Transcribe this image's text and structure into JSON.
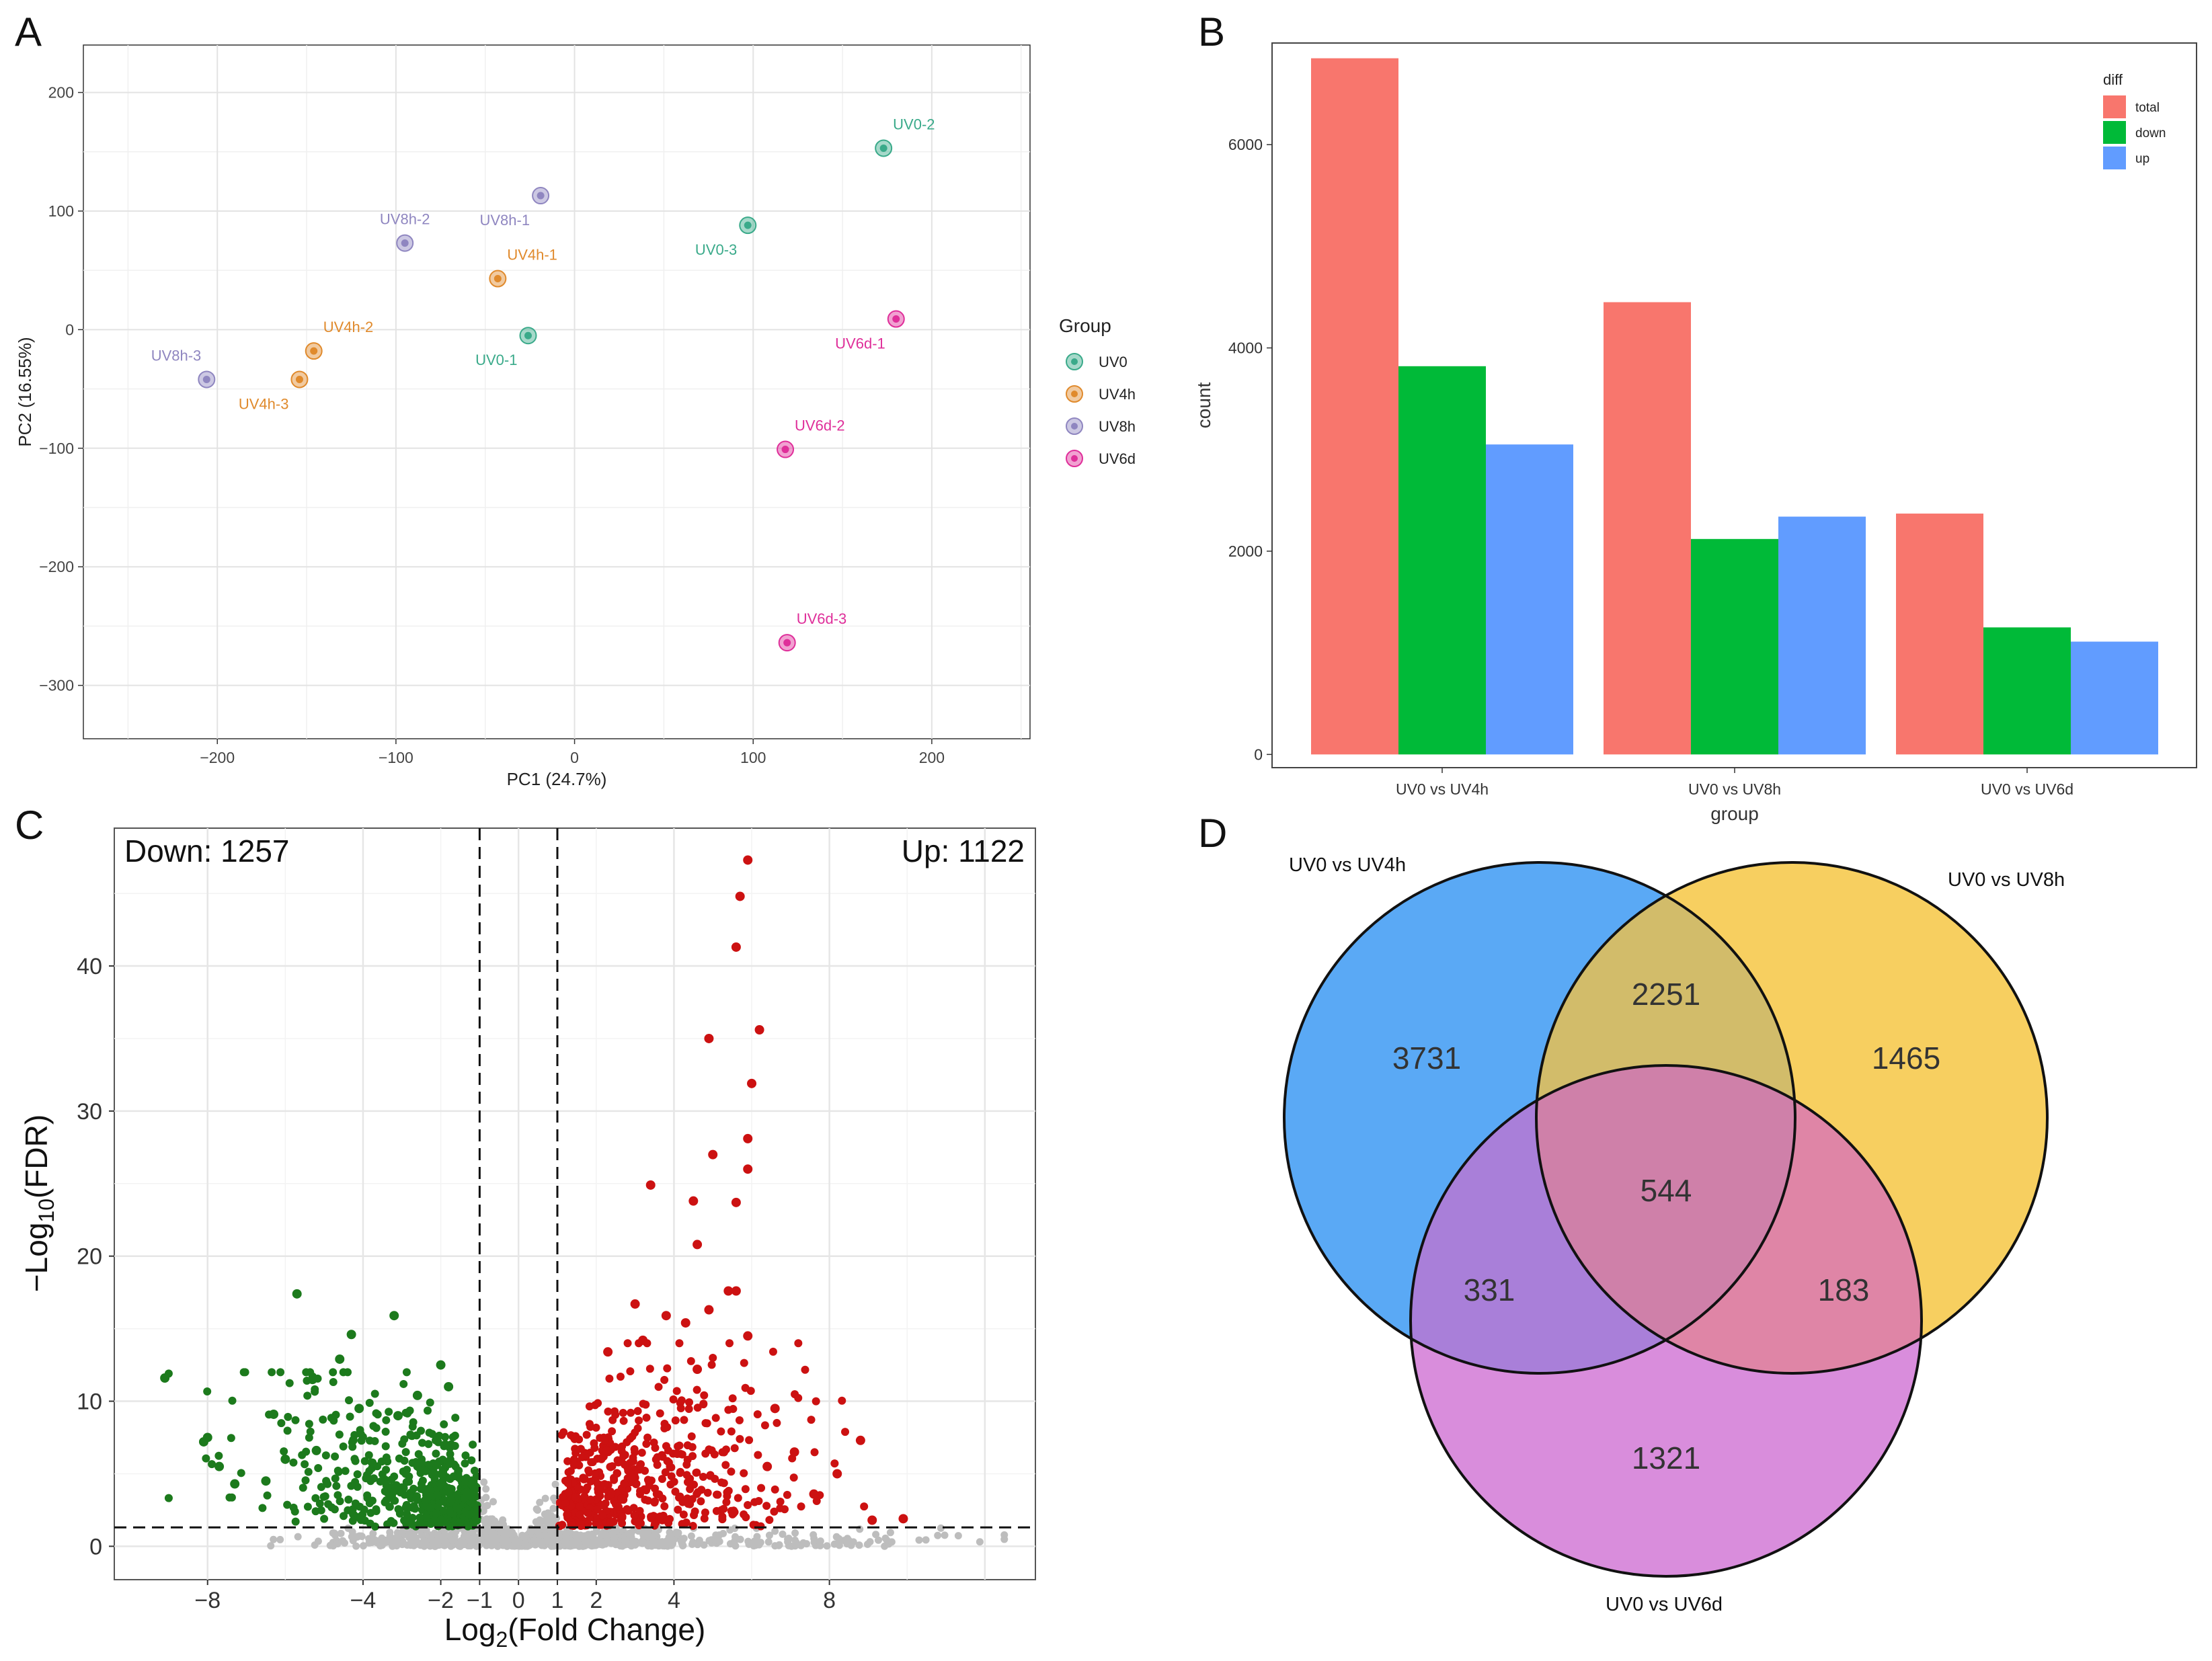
{
  "panel_labels": [
    "A",
    "B",
    "C",
    "D"
  ],
  "chart_data": [
    {
      "type": "scatter",
      "panel": "A",
      "title": "",
      "xlabel": "PC1 (24.7%)",
      "ylabel": "PC2 (16.55%)",
      "xlim": [
        -275,
        255
      ],
      "ylim": [
        -345,
        240
      ],
      "xticks": [
        -200,
        -100,
        0,
        100,
        200
      ],
      "yticks": [
        200,
        100,
        0,
        -100,
        -200,
        -300
      ],
      "tick_labels_x": [
        "−200",
        "−100",
        "0",
        "100",
        "200"
      ],
      "tick_labels_y": [
        "200",
        "100",
        "0",
        "−100",
        "−200",
        "−300"
      ],
      "grid": true,
      "legend": {
        "title": "Group",
        "placement": "right",
        "items": [
          {
            "label": "UV0",
            "color": "#3aaa8a"
          },
          {
            "label": "UV4h",
            "color": "#e08a2c"
          },
          {
            "label": "UV8h",
            "color": "#8f86c0"
          },
          {
            "label": "UV6d",
            "color": "#df2f9a"
          }
        ]
      },
      "points": [
        {
          "label": "UV0-1",
          "group": 0,
          "x": -26,
          "y": -5,
          "label_pos": "below-left"
        },
        {
          "label": "UV0-2",
          "group": 0,
          "x": 173,
          "y": 153,
          "label_pos": "above-right"
        },
        {
          "label": "UV0-3",
          "group": 0,
          "x": 97,
          "y": 88,
          "label_pos": "below-left"
        },
        {
          "label": "UV4h-1",
          "group": 1,
          "x": -43,
          "y": 43,
          "label_pos": "above-right"
        },
        {
          "label": "UV4h-2",
          "group": 1,
          "x": -146,
          "y": -18,
          "label_pos": "above-right"
        },
        {
          "label": "UV4h-3",
          "group": 1,
          "x": -154,
          "y": -42,
          "label_pos": "below-left"
        },
        {
          "label": "UV8h-1",
          "group": 2,
          "x": -19,
          "y": 113,
          "label_pos": "below-left"
        },
        {
          "label": "UV8h-2",
          "group": 2,
          "x": -95,
          "y": 73,
          "label_pos": "above"
        },
        {
          "label": "UV8h-3",
          "group": 2,
          "x": -206,
          "y": -42,
          "label_pos": "above-left"
        },
        {
          "label": "UV6d-1",
          "group": 3,
          "x": 180,
          "y": 9,
          "label_pos": "below-left"
        },
        {
          "label": "UV6d-2",
          "group": 3,
          "x": 118,
          "y": -101,
          "label_pos": "above-right"
        },
        {
          "label": "UV6d-3",
          "group": 3,
          "x": 119,
          "y": -264,
          "label_pos": "above-right"
        }
      ]
    },
    {
      "type": "bar",
      "panel": "B",
      "title": "",
      "xlabel": "group",
      "ylabel": "count",
      "ylim": [
        -130,
        7000
      ],
      "yticks": [
        0,
        2000,
        4000,
        6000
      ],
      "grid": false,
      "categories": [
        "UV0 vs UV4h",
        "UV0 vs UV8h",
        "UV0 vs UV6d"
      ],
      "legend": {
        "title": "diff",
        "placement": "top-right"
      },
      "series": [
        {
          "name": "total",
          "color": "#f8766d",
          "values": [
            6850,
            4450,
            2370
          ]
        },
        {
          "name": "down",
          "color": "#00ba38",
          "values": [
            3820,
            2120,
            1250
          ]
        },
        {
          "name": "up",
          "color": "#619cff",
          "values": [
            3050,
            2340,
            1110
          ]
        }
      ]
    },
    {
      "type": "scatter",
      "panel": "C",
      "title": "",
      "xlabel": "Log2(Fold Change)",
      "ylabel": "−Log10(FDR)",
      "xlim": [
        -10.4,
        13.3
      ],
      "ylim": [
        -2.3,
        49.5
      ],
      "xticks": [
        -8,
        -4,
        -2,
        -1,
        0,
        1,
        2,
        4,
        8
      ],
      "tick_labels_x": [
        "−8",
        "−4",
        "−2",
        "−1",
        "0",
        "1",
        "2",
        "4",
        "8"
      ],
      "yticks": [
        0,
        10,
        20,
        30,
        40
      ],
      "thresholds": {
        "log2fc": [
          -1,
          1
        ],
        "neg_log10_fdr": 1.3
      },
      "annotations": {
        "down": "Down: 1257",
        "up": "Up: 1122"
      },
      "counts": {
        "down": 1257,
        "up": 1122
      },
      "colors": {
        "down": "#1c7a1c",
        "up": "#cc1111",
        "ns": "#bdbdbd"
      },
      "highlighted_points": {
        "up": [
          [
            5.9,
            47.3
          ],
          [
            5.7,
            44.8
          ],
          [
            5.6,
            41.3
          ],
          [
            6.2,
            35.6
          ],
          [
            4.9,
            35.0
          ],
          [
            6.0,
            31.9
          ],
          [
            5.9,
            28.1
          ],
          [
            5.0,
            27.0
          ],
          [
            5.9,
            26.0
          ],
          [
            3.4,
            24.9
          ],
          [
            4.5,
            23.8
          ],
          [
            5.6,
            23.7
          ],
          [
            4.6,
            20.8
          ],
          [
            5.4,
            17.6
          ],
          [
            5.6,
            17.6
          ],
          [
            3.0,
            16.7
          ],
          [
            4.9,
            16.3
          ],
          [
            3.8,
            15.9
          ],
          [
            4.3,
            15.4
          ],
          [
            5.9,
            14.5
          ],
          [
            3.2,
            14.2
          ],
          [
            4.6,
            12.2
          ],
          [
            2.3,
            13.4
          ],
          [
            6.6,
            9.5
          ],
          [
            7.1,
            6.5
          ],
          [
            6.4,
            5.5
          ],
          [
            8.8,
            7.3
          ],
          [
            8.2,
            5.0
          ],
          [
            7.6,
            3.6
          ],
          [
            9.1,
            1.8
          ],
          [
            9.9,
            1.9
          ]
        ],
        "down": [
          [
            -9.1,
            11.6
          ],
          [
            -5.7,
            17.4
          ],
          [
            -4.3,
            14.6
          ],
          [
            -3.2,
            15.9
          ],
          [
            -2.0,
            12.5
          ],
          [
            -4.6,
            12.9
          ],
          [
            -5.3,
            11.5
          ],
          [
            -8.1,
            7.2
          ],
          [
            -6.3,
            9.1
          ],
          [
            -7.7,
            5.5
          ],
          [
            -7.3,
            4.3
          ],
          [
            -5.2,
            6.6
          ],
          [
            -6.0,
            6.0
          ],
          [
            -8.0,
            7.5
          ],
          [
            -6.5,
            4.5
          ],
          [
            -4.1,
            9.5
          ],
          [
            -3.1,
            9.0
          ],
          [
            -2.6,
            10.4
          ],
          [
            -1.8,
            11.0
          ]
        ]
      }
    },
    {
      "type": "venn",
      "panel": "D",
      "title": "",
      "sets": [
        {
          "label": "UV0 vs UV4h",
          "color": "#5aa9f5"
        },
        {
          "label": "UV0 vs UV8h",
          "color": "#f7cf60"
        },
        {
          "label": "UV0 vs UV6d",
          "color": "#d98ddc"
        }
      ],
      "regions": {
        "only_4h": 3731,
        "only_8h": 1465,
        "only_6d": 1321,
        "4h_8h": 2251,
        "4h_6d": 331,
        "8h_6d": 183,
        "all": 544
      },
      "region_colors": {
        "4h_8h": "#d2bc6a",
        "4h_6d": "#a97fd9",
        "8h_6d": "#df85a6",
        "all": "#cf80a9"
      }
    }
  ]
}
